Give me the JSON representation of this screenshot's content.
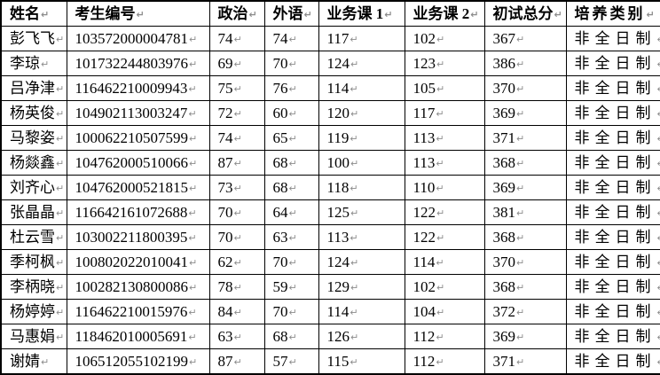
{
  "table": {
    "pilcrow": "↵",
    "columns": [
      {
        "key": "name",
        "label": "姓名"
      },
      {
        "key": "id",
        "label": "考生编号"
      },
      {
        "key": "politics",
        "label": "政治"
      },
      {
        "key": "foreign",
        "label": "外语"
      },
      {
        "key": "course1",
        "label": "业务课 1"
      },
      {
        "key": "course2",
        "label": "业务课 2"
      },
      {
        "key": "total",
        "label": "初试总分"
      },
      {
        "key": "category",
        "label": "培养类别"
      }
    ],
    "rows": [
      {
        "name": "彭飞飞",
        "id": "103572000004781",
        "politics": "74",
        "foreign": "74",
        "course1": "117",
        "course2": "102",
        "total": "367",
        "category": "非全日制"
      },
      {
        "name": "李琼",
        "id": "101732244803976",
        "politics": "69",
        "foreign": "70",
        "course1": "124",
        "course2": "123",
        "total": "386",
        "category": "非全日制"
      },
      {
        "name": "吕净津",
        "id": "116462210009943",
        "politics": "75",
        "foreign": "76",
        "course1": "114",
        "course2": "105",
        "total": "370",
        "category": "非全日制"
      },
      {
        "name": "杨英俊",
        "id": "104902113003247",
        "politics": "72",
        "foreign": "60",
        "course1": "120",
        "course2": "117",
        "total": "369",
        "category": "非全日制"
      },
      {
        "name": "马黎姿",
        "id": "100062210507599",
        "politics": "74",
        "foreign": "65",
        "course1": "119",
        "course2": "113",
        "total": "371",
        "category": "非全日制"
      },
      {
        "name": "杨燚鑫",
        "id": "104762000510066",
        "politics": "87",
        "foreign": "68",
        "course1": "100",
        "course2": "113",
        "total": "368",
        "category": "非全日制"
      },
      {
        "name": "刘齐心",
        "id": "104762000521815",
        "politics": "73",
        "foreign": "68",
        "course1": "118",
        "course2": "110",
        "total": "369",
        "category": "非全日制"
      },
      {
        "name": "张晶晶",
        "id": "116642161072688",
        "politics": "70",
        "foreign": "64",
        "course1": "125",
        "course2": "122",
        "total": "381",
        "category": "非全日制"
      },
      {
        "name": "杜云雪",
        "id": "103002211800395",
        "politics": "70",
        "foreign": "63",
        "course1": "113",
        "course2": "122",
        "total": "368",
        "category": "非全日制"
      },
      {
        "name": "季柯枫",
        "id": "100802022010041",
        "politics": "62",
        "foreign": "70",
        "course1": "124",
        "course2": "114",
        "total": "370",
        "category": "非全日制"
      },
      {
        "name": "李柄晓",
        "id": "100282130800086",
        "politics": "78",
        "foreign": "59",
        "course1": "129",
        "course2": "102",
        "total": "368",
        "category": "非全日制"
      },
      {
        "name": "杨婷婷",
        "id": "116462210015976",
        "politics": "84",
        "foreign": "70",
        "course1": "114",
        "course2": "104",
        "total": "372",
        "category": "非全日制"
      },
      {
        "name": "马惠娟",
        "id": "118462010005691",
        "politics": "63",
        "foreign": "68",
        "course1": "126",
        "course2": "112",
        "total": "369",
        "category": "非全日制"
      },
      {
        "name": "谢婧",
        "id": "106512055102199",
        "politics": "87",
        "foreign": "57",
        "course1": "115",
        "course2": "112",
        "total": "371",
        "category": "非全日制"
      }
    ]
  }
}
